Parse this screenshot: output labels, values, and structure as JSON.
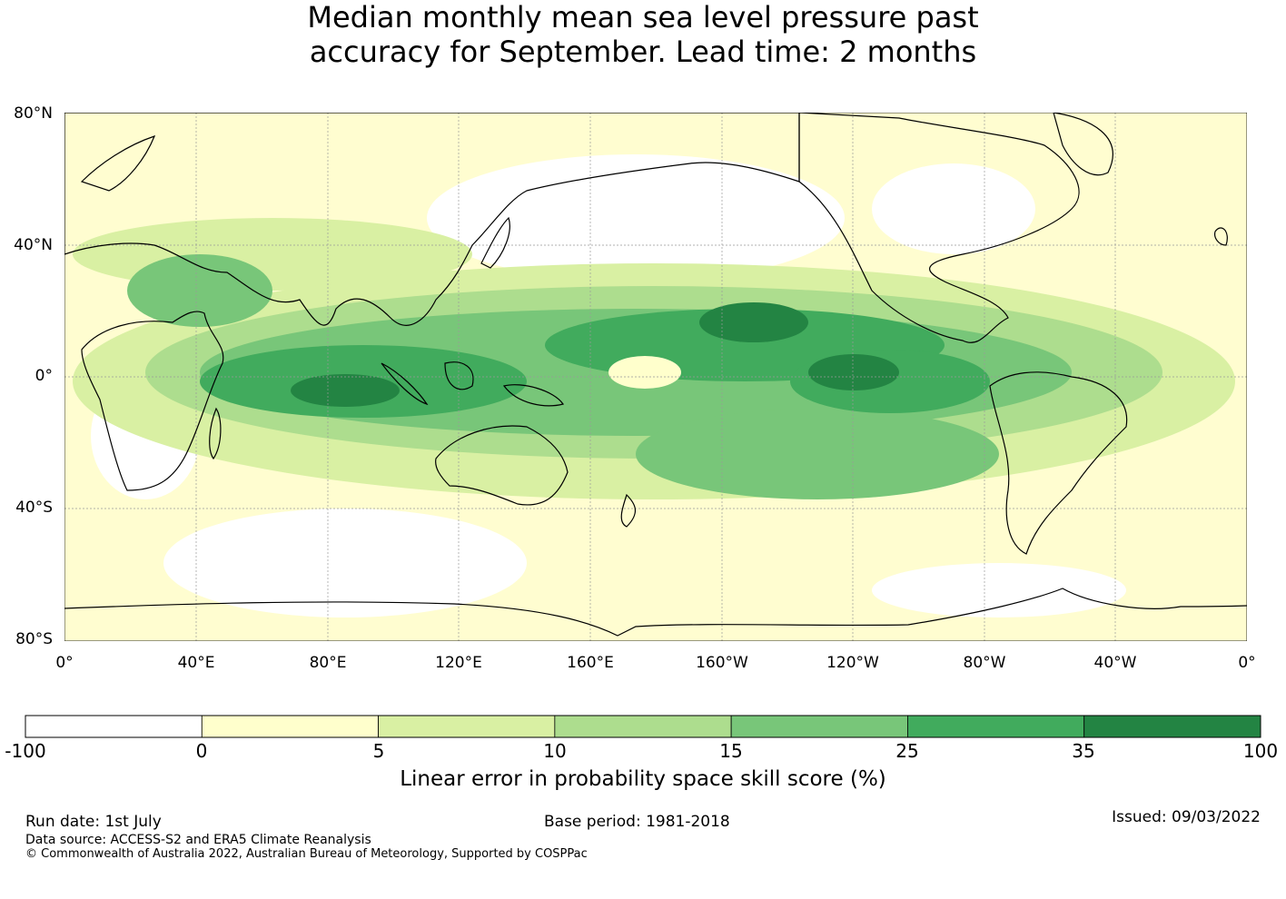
{
  "title": {
    "line1": "Median monthly mean sea level pressure past",
    "line2": "accuracy for September. Lead time: 2 months"
  },
  "map": {
    "lat_labels": [
      "80°N",
      "40°N",
      "0°",
      "40°S",
      "80°S"
    ],
    "lon_labels": [
      "0°",
      "40°E",
      "80°E",
      "120°E",
      "160°E",
      "160°W",
      "120°W",
      "80°W",
      "40°W",
      "0°"
    ],
    "colors": {
      "land_outline": "#000000",
      "grid": "#999999"
    }
  },
  "colorbar": {
    "title": "Linear error in probability space skill score (%)",
    "ticks": [
      "-100",
      "0",
      "5",
      "10",
      "15",
      "25",
      "35",
      "100"
    ],
    "colors": [
      "#ffffff",
      "#ffffcc",
      "#d9f0a3",
      "#addd8e",
      "#78c679",
      "#41ab5d",
      "#238443"
    ]
  },
  "footer": {
    "run_date": "Run date: 1st July",
    "base_period": "Base period: 1981-2018",
    "issued": "Issued: 09/03/2022",
    "data_source": "Data source: ACCESS-S2 and ERA5 Climate Reanalysis",
    "copyright": "© Commonwealth of Australia 2022, Australian Bureau of Meteorology, Supported by COSPPac"
  }
}
